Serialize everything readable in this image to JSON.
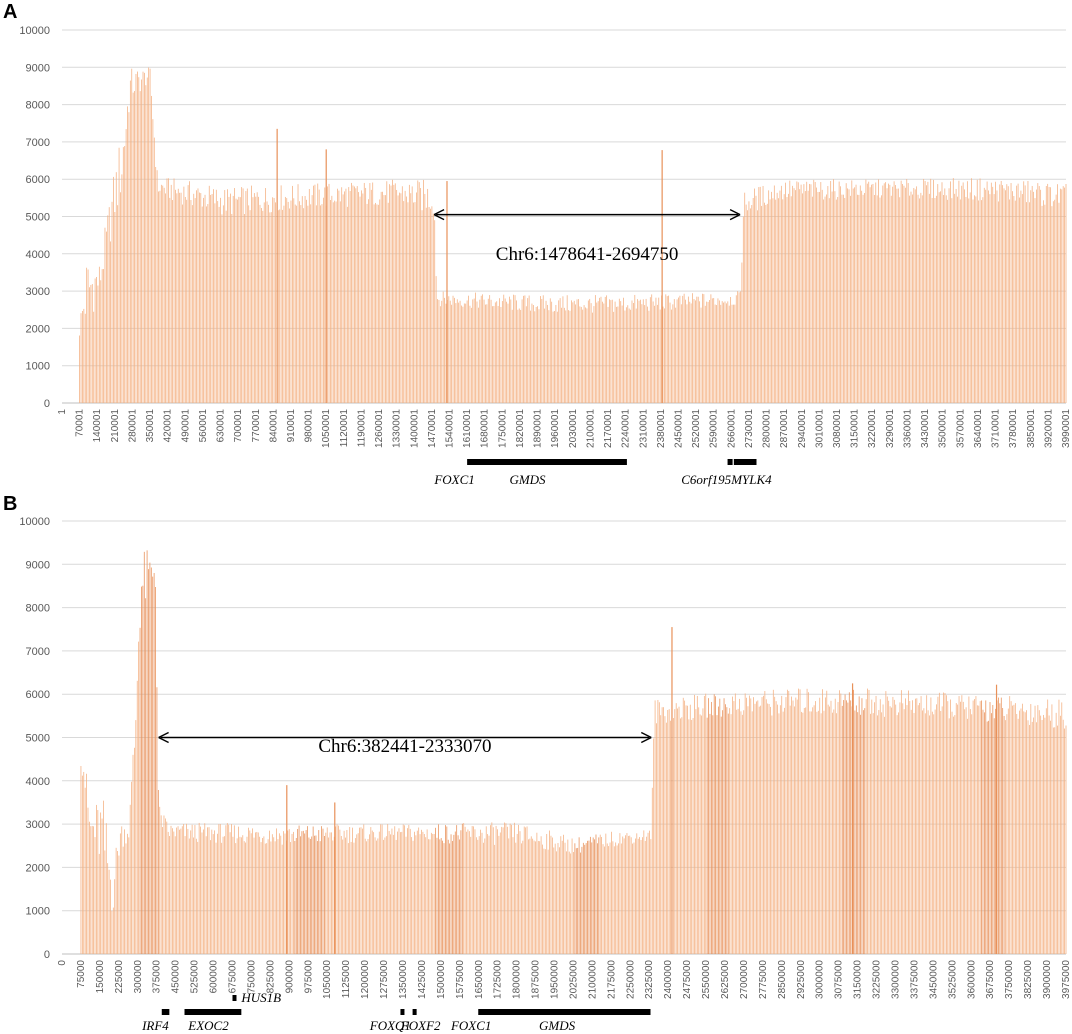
{
  "figure": {
    "bar_color": "#f4b183",
    "bar_dark_color": "#e8915a",
    "text_color": "#595959"
  },
  "chart_data": [
    {
      "panel_label": "A",
      "type": "bar",
      "ylim": [
        0,
        10000
      ],
      "yticks": [
        0,
        1000,
        2000,
        3000,
        4000,
        5000,
        6000,
        7000,
        8000,
        9000,
        10000
      ],
      "grid": true,
      "xlim": [
        1,
        3990001
      ],
      "x_tick_labels": [
        "1",
        "70001",
        "140001",
        "210001",
        "280001",
        "350001",
        "420001",
        "490001",
        "560001",
        "630001",
        "700001",
        "770001",
        "840001",
        "910001",
        "980001",
        "1050001",
        "1120001",
        "1190001",
        "1260001",
        "1330001",
        "1400001",
        "1470001",
        "1540001",
        "1610001",
        "1680001",
        "1750001",
        "1820001",
        "1890001",
        "1960001",
        "2030001",
        "2100001",
        "2170001",
        "2240001",
        "2310001",
        "2380001",
        "2450001",
        "2520001",
        "2590001",
        "2660001",
        "2730001",
        "2800001",
        "2870001",
        "2940001",
        "3010001",
        "3080001",
        "3150001",
        "3220001",
        "3290001",
        "3360001",
        "3430001",
        "3500001",
        "3570001",
        "3640001",
        "3710001",
        "3780001",
        "3850001",
        "3920001",
        "3990001"
      ],
      "profile": [
        [
          70001,
          1700,
          2300
        ],
        [
          100001,
          2000,
          4100
        ],
        [
          150001,
          2800,
          3800
        ],
        [
          200001,
          4500,
          6000
        ],
        [
          240001,
          5500,
          7500
        ],
        [
          270001,
          8000,
          9000
        ],
        [
          350001,
          8600,
          9000
        ],
        [
          380001,
          5500,
          6100
        ],
        [
          650001,
          5000,
          5800
        ],
        [
          1000001,
          5200,
          5900
        ],
        [
          1330001,
          5300,
          6000
        ],
        [
          1478641,
          5000,
          6000
        ],
        [
          1490001,
          2600,
          3000
        ],
        [
          1900001,
          2400,
          2900
        ],
        [
          2200001,
          2400,
          2900
        ],
        [
          2500001,
          2500,
          2950
        ],
        [
          2694750,
          2600,
          3000
        ],
        [
          2710001,
          5000,
          5700
        ],
        [
          2850001,
          5400,
          6000
        ],
        [
          3300001,
          5500,
          6000
        ],
        [
          3700001,
          5400,
          6050
        ],
        [
          3990001,
          5200,
          5900
        ]
      ],
      "spikes": [
        [
          855001,
          7350
        ],
        [
          1050001,
          6800
        ],
        [
          2385001,
          6780
        ],
        [
          1530001,
          5950
        ]
      ],
      "annotation": {
        "text": "Chr6:1478641-2694750",
        "x_start": 1478641,
        "x_end": 2694750,
        "y": 5050,
        "label_y": 4000
      },
      "genes": [
        {
          "name": "FOXC1",
          "start": 1610001,
          "end": 1625001,
          "row": 0,
          "label_x": 1560001,
          "label_anchor": "middle"
        },
        {
          "name": "GMDS",
          "start": 1625001,
          "end": 2245001,
          "row": 0,
          "label_x": 1850001,
          "label_anchor": "middle"
        },
        {
          "name": "C6orf195",
          "start": 2645001,
          "end": 2665001,
          "row": 0,
          "label_x": 2560001,
          "label_anchor": "middle"
        },
        {
          "name": "MYLK4",
          "start": 2670001,
          "end": 2760001,
          "row": 0,
          "label_x": 2740001,
          "label_anchor": "middle"
        }
      ]
    },
    {
      "panel_label": "B",
      "type": "bar",
      "ylim": [
        0,
        10000
      ],
      "yticks": [
        0,
        1000,
        2000,
        3000,
        4000,
        5000,
        6000,
        7000,
        8000,
        9000,
        10000
      ],
      "grid": true,
      "xlim": [
        0,
        3975000
      ],
      "x_tick_labels": [
        "0",
        "75000",
        "150000",
        "225000",
        "300000",
        "375000",
        "450000",
        "525000",
        "600000",
        "675000",
        "750000",
        "825000",
        "900000",
        "975000",
        "1050000",
        "1125000",
        "1200000",
        "1275000",
        "1350000",
        "1425000",
        "1500000",
        "1575000",
        "1650000",
        "1725000",
        "1800000",
        "1875000",
        "1950000",
        "2025000",
        "2100000",
        "2175000",
        "2250000",
        "2325000",
        "2400000",
        "2475000",
        "2550000",
        "2625000",
        "2700000",
        "2775000",
        "2850000",
        "2925000",
        "3000000",
        "3075000",
        "3150000",
        "3225000",
        "3300000",
        "3375000",
        "3450000",
        "3525000",
        "3600000",
        "3675000",
        "3750000",
        "3825000",
        "3900000",
        "3975000"
      ],
      "profile": [
        [
          75000,
          4300,
          5850
        ],
        [
          110000,
          2500,
          3300
        ],
        [
          160000,
          1800,
          3800
        ],
        [
          200000,
          800,
          2100
        ],
        [
          230000,
          2400,
          3100
        ],
        [
          265000,
          2600,
          3100
        ],
        [
          290000,
          4500,
          5700
        ],
        [
          310000,
          7500,
          9400
        ],
        [
          370000,
          8500,
          9300
        ],
        [
          382441,
          3000,
          3500
        ],
        [
          420000,
          2600,
          3050
        ],
        [
          900000,
          2500,
          3000
        ],
        [
          1300000,
          2600,
          3000
        ],
        [
          1800000,
          2500,
          3050
        ],
        [
          2030000,
          2300,
          2700
        ],
        [
          2200000,
          2500,
          2850
        ],
        [
          2333070,
          2600,
          2900
        ],
        [
          2345000,
          5300,
          5900
        ],
        [
          2700000,
          5500,
          6100
        ],
        [
          3100000,
          5500,
          6200
        ],
        [
          3600000,
          5400,
          6000
        ],
        [
          3975000,
          5200,
          5900
        ]
      ],
      "spikes": [
        [
          890000,
          3900
        ],
        [
          1080000,
          3500
        ],
        [
          2415000,
          7550
        ],
        [
          3130000,
          6250
        ],
        [
          3700000,
          6220
        ]
      ],
      "dark_bands": [
        [
          305000,
          385000
        ],
        [
          920000,
          1040000
        ],
        [
          1475000,
          1590000
        ],
        [
          2030000,
          2130000
        ],
        [
          2550000,
          2640000
        ],
        [
          3085000,
          3180000
        ],
        [
          3640000,
          3730000
        ]
      ],
      "annotation": {
        "text": "Chr6:382441-2333070",
        "x_start": 382441,
        "x_end": 2333070,
        "y": 5000,
        "label_y": 4800
      },
      "genes": [
        {
          "name": "IRF4",
          "start": 395000,
          "end": 425000,
          "row": 0,
          "label_x": 370000,
          "label_anchor": "middle"
        },
        {
          "name": "EXOC2",
          "start": 485000,
          "end": 710000,
          "row": 0,
          "label_x": 580000,
          "label_anchor": "middle"
        },
        {
          "name": "HUS1B",
          "start": 675000,
          "end": 683000,
          "row": -1,
          "label_x": 710000,
          "label_anchor": "start"
        },
        {
          "name": "FOXQ1",
          "start": 1340000,
          "end": 1348000,
          "row": 0,
          "label_x": 1300000,
          "label_anchor": "middle"
        },
        {
          "name": "FOXF2",
          "start": 1388000,
          "end": 1404000,
          "row": 0,
          "label_x": 1420000,
          "label_anchor": "middle"
        },
        {
          "name": "FOXC1",
          "start": 1648000,
          "end": 1660000,
          "row": 0,
          "label_x": 1620000,
          "label_anchor": "middle"
        },
        {
          "name": "GMDS",
          "start": 1660000,
          "end": 2330000,
          "row": 0,
          "label_x": 1960000,
          "label_anchor": "middle"
        }
      ]
    }
  ]
}
